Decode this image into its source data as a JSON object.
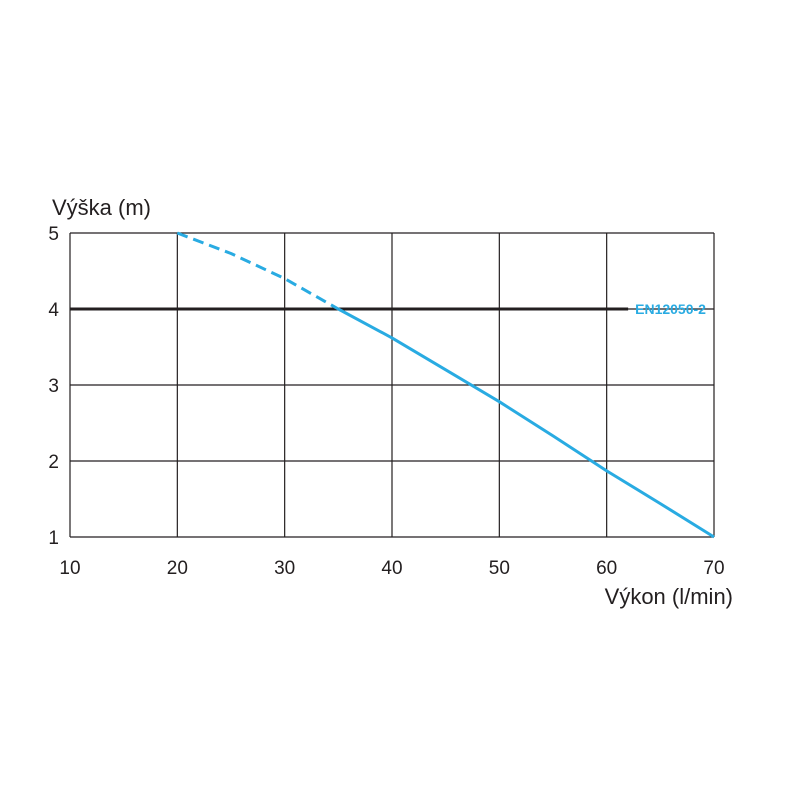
{
  "chart_data": {
    "type": "line",
    "xlabel": "Výkon (l/min)",
    "ylabel": "Výška (m)",
    "xlim": [
      10,
      70
    ],
    "ylim": [
      1,
      5
    ],
    "x_ticks": [
      "10",
      "20",
      "30",
      "40",
      "50",
      "60",
      "70"
    ],
    "y_ticks": [
      "1",
      "2",
      "3",
      "4",
      "5"
    ],
    "grid": true,
    "series": [
      {
        "style": "dashed",
        "color": "#29abe2",
        "x": [
          20,
          25,
          30,
          35
        ],
        "y": [
          5.0,
          4.73,
          4.4,
          4.0
        ]
      },
      {
        "style": "solid",
        "color": "#29abe2",
        "x": [
          35,
          40,
          45,
          50,
          55,
          60,
          65,
          70
        ],
        "y": [
          4.0,
          3.62,
          3.2,
          2.78,
          2.33,
          1.87,
          1.44,
          1.0
        ]
      }
    ],
    "reference_lines": [
      {
        "label": "EN12050-2",
        "y": 4,
        "x_from": 10,
        "x_to": 62,
        "color": "#231f20",
        "label_color": "#29abe2"
      }
    ]
  },
  "colors": {
    "grid": "#231f20",
    "series": "#29abe2",
    "text": "#231f20"
  }
}
